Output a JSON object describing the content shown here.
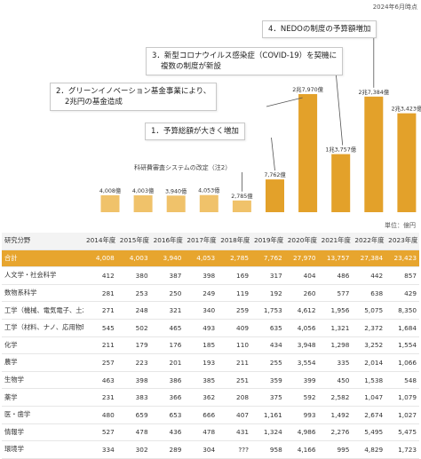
{
  "header": {
    "as_of": "2024年6月時点"
  },
  "chart_data": {
    "type": "bar",
    "categories": [
      "2014年度",
      "2015年度",
      "2016年度",
      "2017年度",
      "2018年度",
      "2019年度",
      "2020年度",
      "2021年度",
      "2022年度",
      "2023年度"
    ],
    "values": [
      4008,
      4003,
      3940,
      4053,
      2785,
      7762,
      27970,
      13757,
      27384,
      23423
    ],
    "value_labels": [
      "4,008億",
      "4,003億",
      "3,940億",
      "4,053億",
      "2,785億",
      "7,762億",
      "2兆7,970億",
      "1兆3,757億",
      "2兆7,384億",
      "2兆3,423億"
    ],
    "highlight": [
      false,
      false,
      false,
      false,
      false,
      true,
      true,
      true,
      true,
      true
    ],
    "colors": {
      "normal": "#f0c26a",
      "highlight": "#e3a12a",
      "total_row": "#e7a52e"
    },
    "unit_note": "単位：億円",
    "annotations": [
      {
        "lines": [
          "科研費審査システムの改定（注2）"
        ],
        "target": "2018年度",
        "style": "plain"
      },
      {
        "lines": [
          "1．予算総額が大きく増加"
        ],
        "target": "2019年度",
        "style": "box"
      },
      {
        "lines": [
          "2．グリーンイノベーション基金事業により、",
          "2兆円の基金造成"
        ],
        "target": "2020年度",
        "style": "box"
      },
      {
        "lines": [
          "3．新型コロナウイルス感染症（COVID-19）を契機に",
          "複数の制度が新設"
        ],
        "target": "2021年度",
        "style": "box"
      },
      {
        "lines": [
          "4．NEDOの制度の予算額増加"
        ],
        "target": "2022年度",
        "style": "box"
      }
    ]
  },
  "table": {
    "header": [
      "研究分野",
      "2014年度",
      "2015年度",
      "2016年度",
      "2017年度",
      "2018年度",
      "2019年度",
      "2020年度",
      "2021年度",
      "2022年度",
      "2023年度"
    ],
    "rows": [
      [
        "合計",
        "4,008",
        "4,003",
        "3,940",
        "4,053",
        "2,785",
        "7,762",
        "27,970",
        "13,757",
        "27,384",
        "23,423"
      ],
      [
        "人文学・社会科学",
        "412",
        "380",
        "387",
        "398",
        "169",
        "317",
        "404",
        "486",
        "442",
        "857"
      ],
      [
        "数物系科学",
        "281",
        "253",
        "250",
        "249",
        "119",
        "192",
        "260",
        "577",
        "638",
        "429"
      ],
      [
        "工学（機械、電気電子、土木等）",
        "271",
        "248",
        "321",
        "340",
        "259",
        "1,753",
        "4,612",
        "1,956",
        "5,075",
        "8,350"
      ],
      [
        "工学（材料、ナノ、応用物理等）",
        "545",
        "502",
        "465",
        "493",
        "409",
        "635",
        "4,056",
        "1,321",
        "2,372",
        "1,684"
      ],
      [
        "化学",
        "211",
        "179",
        "176",
        "185",
        "110",
        "434",
        "3,948",
        "1,298",
        "3,252",
        "1,554"
      ],
      [
        "農学",
        "257",
        "223",
        "201",
        "193",
        "211",
        "255",
        "3,554",
        "335",
        "2,014",
        "1,066"
      ],
      [
        "生物学",
        "463",
        "398",
        "386",
        "385",
        "251",
        "359",
        "399",
        "450",
        "1,538",
        "548"
      ],
      [
        "薬学",
        "231",
        "383",
        "366",
        "362",
        "208",
        "375",
        "592",
        "2,582",
        "1,047",
        "1,079"
      ],
      [
        "医・歯学",
        "480",
        "659",
        "653",
        "666",
        "407",
        "1,161",
        "993",
        "1,492",
        "2,674",
        "1,027"
      ],
      [
        "情報学",
        "527",
        "478",
        "436",
        "478",
        "431",
        "1,324",
        "4,986",
        "2,276",
        "5,495",
        "5,475"
      ],
      [
        "環境学",
        "334",
        "302",
        "289",
        "304",
        "???",
        "958",
        "4,166",
        "995",
        "4,829",
        "1,723"
      ]
    ]
  }
}
